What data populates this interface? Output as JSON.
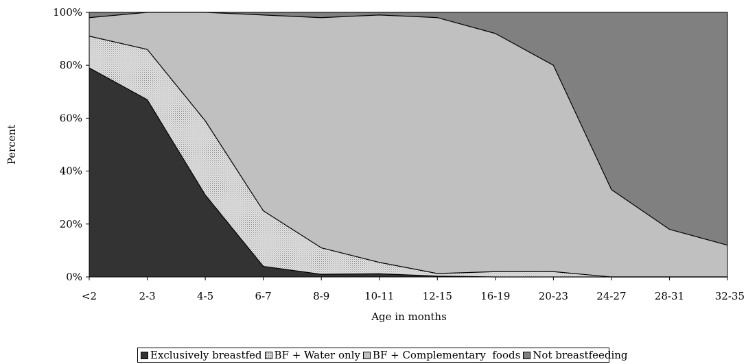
{
  "chart_data": {
    "type": "area",
    "stacked": true,
    "title": "",
    "xlabel": "Age in months",
    "ylabel": "Percent",
    "ylim": [
      0,
      100
    ],
    "y_ticks": [
      "0%",
      "20%",
      "40%",
      "60%",
      "80%",
      "100%"
    ],
    "categories": [
      "<2",
      "2-3",
      "4-5",
      "6-7",
      "8-9",
      "10-11",
      "12-15",
      "16-19",
      "20-23",
      "24-27",
      "28-31",
      "32-35"
    ],
    "series": [
      {
        "name": "Exclusively breastfed",
        "color": "#333333",
        "pattern": "solid",
        "values": [
          79,
          67,
          31,
          4,
          1,
          1.2,
          0.3,
          0,
          0,
          0,
          0,
          0
        ]
      },
      {
        "name": "BF + Water only",
        "color": "#d9d9d9",
        "pattern": "dotted",
        "values": [
          12,
          19,
          28,
          21,
          10,
          4.3,
          1.0,
          2,
          2,
          0,
          0,
          0
        ]
      },
      {
        "name": "BF + Complementary  foods",
        "color": "#c0c0c0",
        "pattern": "solid",
        "values": [
          7,
          14,
          41,
          74,
          87,
          93.5,
          96.7,
          90,
          78,
          33,
          18,
          12
        ]
      },
      {
        "name": "Not breastfeeding",
        "color": "#808080",
        "pattern": "solid",
        "values": [
          2,
          0,
          0,
          1,
          2,
          1.0,
          2.0,
          8,
          20,
          67,
          82,
          88
        ]
      }
    ],
    "grid": false,
    "legend_position": "bottom"
  }
}
